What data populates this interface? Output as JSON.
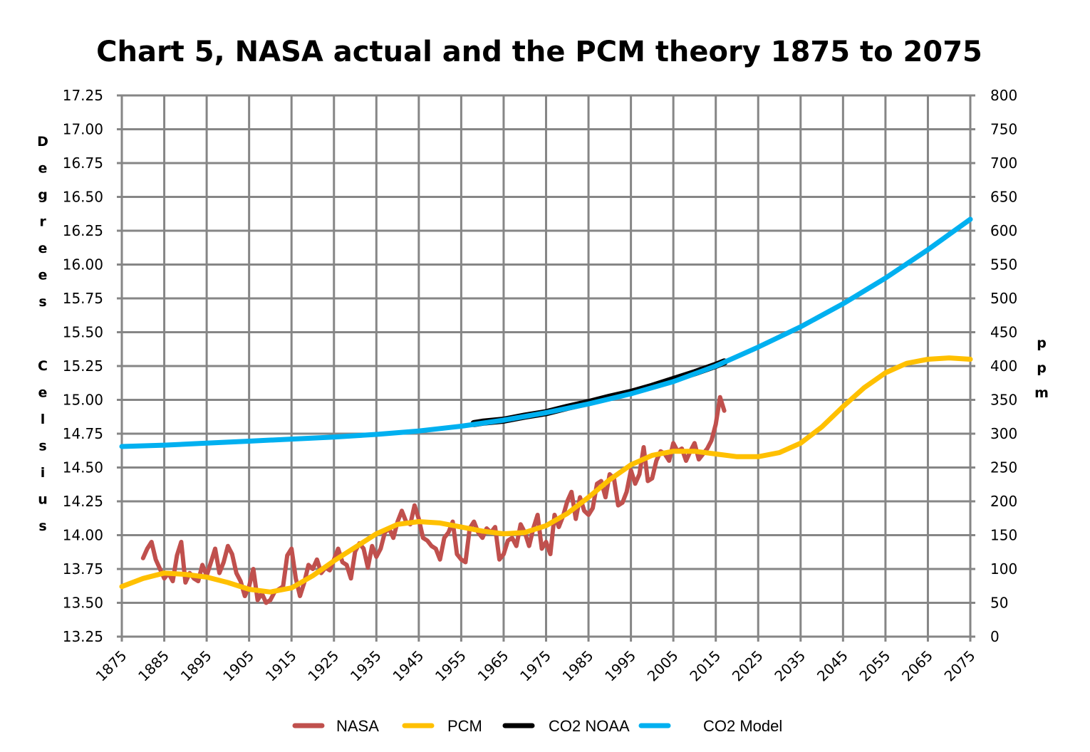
{
  "chart_data": {
    "type": "line",
    "title": "Chart 5, NASA actual and the PCM theory 1875 to 2075",
    "xlabel": "",
    "ylabel": "Degrees Celsius",
    "y2label": "ppm",
    "xlim": [
      1875,
      2075
    ],
    "ylim": [
      13.25,
      17.25
    ],
    "y2lim": [
      0,
      800
    ],
    "grid": true,
    "legend_position": "bottom",
    "x_ticks": [
      "1875",
      "1885",
      "1895",
      "1905",
      "1915",
      "1925",
      "1935",
      "1945",
      "1955",
      "1965",
      "1975",
      "1985",
      "1995",
      "2005",
      "2015",
      "2025",
      "2035",
      "2045",
      "2055",
      "2065",
      "2075"
    ],
    "y_ticks": [
      "17.25",
      "17.00",
      "16.75",
      "16.50",
      "16.25",
      "16.00",
      "15.75",
      "15.50",
      "15.25",
      "15.00",
      "14.75",
      "14.50",
      "14.25",
      "14.00",
      "13.75",
      "13.50",
      "13.25"
    ],
    "y2_ticks": [
      "800",
      "750",
      "700",
      "650",
      "600",
      "550",
      "500",
      "450",
      "400",
      "350",
      "300",
      "250",
      "200",
      "150",
      "100",
      "50",
      "0"
    ],
    "series": [
      {
        "name": "NASA",
        "axis": "left",
        "color": "#c0504d",
        "x": [
          1880,
          1881,
          1882,
          1883,
          1884,
          1885,
          1886,
          1887,
          1888,
          1889,
          1890,
          1891,
          1892,
          1893,
          1894,
          1895,
          1896,
          1897,
          1898,
          1899,
          1900,
          1901,
          1902,
          1903,
          1904,
          1905,
          1906,
          1907,
          1908,
          1909,
          1910,
          1911,
          1912,
          1913,
          1914,
          1915,
          1916,
          1917,
          1918,
          1919,
          1920,
          1921,
          1922,
          1923,
          1924,
          1925,
          1926,
          1927,
          1928,
          1929,
          1930,
          1931,
          1932,
          1933,
          1934,
          1935,
          1936,
          1937,
          1938,
          1939,
          1940,
          1941,
          1942,
          1943,
          1944,
          1945,
          1946,
          1947,
          1948,
          1949,
          1950,
          1951,
          1952,
          1953,
          1954,
          1955,
          1956,
          1957,
          1958,
          1959,
          1960,
          1961,
          1962,
          1963,
          1964,
          1965,
          1966,
          1967,
          1968,
          1969,
          1970,
          1971,
          1972,
          1973,
          1974,
          1975,
          1976,
          1977,
          1978,
          1979,
          1980,
          1981,
          1982,
          1983,
          1984,
          1985,
          1986,
          1987,
          1988,
          1989,
          1990,
          1991,
          1992,
          1993,
          1994,
          1995,
          1996,
          1997,
          1998,
          1999,
          2000,
          2001,
          2002,
          2003,
          2004,
          2005,
          2006,
          2007,
          2008,
          2009,
          2010,
          2011,
          2012,
          2013,
          2014,
          2015,
          2016,
          2017
        ],
        "values": [
          13.83,
          13.9,
          13.95,
          13.82,
          13.75,
          13.68,
          13.72,
          13.66,
          13.85,
          13.95,
          13.65,
          13.72,
          13.68,
          13.66,
          13.78,
          13.7,
          13.8,
          13.9,
          13.72,
          13.8,
          13.92,
          13.86,
          13.72,
          13.66,
          13.55,
          13.62,
          13.75,
          13.52,
          13.57,
          13.5,
          13.52,
          13.58,
          13.6,
          13.62,
          13.85,
          13.9,
          13.68,
          13.55,
          13.65,
          13.78,
          13.75,
          13.82,
          13.72,
          13.76,
          13.74,
          13.82,
          13.9,
          13.8,
          13.78,
          13.68,
          13.88,
          13.94,
          13.9,
          13.76,
          13.92,
          13.84,
          13.9,
          14.02,
          14.05,
          13.98,
          14.1,
          14.18,
          14.1,
          14.08,
          14.22,
          14.12,
          13.98,
          13.96,
          13.92,
          13.9,
          13.82,
          13.98,
          14.02,
          14.1,
          13.86,
          13.82,
          13.8,
          14.05,
          14.1,
          14.02,
          13.98,
          14.05,
          14.02,
          14.06,
          13.82,
          13.86,
          13.96,
          13.98,
          13.92,
          14.08,
          14.02,
          13.92,
          14.05,
          14.15,
          13.9,
          13.95,
          13.86,
          14.15,
          14.06,
          14.14,
          14.25,
          14.32,
          14.12,
          14.28,
          14.18,
          14.15,
          14.2,
          14.38,
          14.4,
          14.28,
          14.45,
          14.42,
          14.22,
          14.24,
          14.32,
          14.48,
          14.38,
          14.45,
          14.65,
          14.4,
          14.42,
          14.55,
          14.62,
          14.6,
          14.55,
          14.68,
          14.62,
          14.64,
          14.55,
          14.62,
          14.68,
          14.56,
          14.6,
          14.64,
          14.7,
          14.82,
          15.02,
          14.92
        ]
      },
      {
        "name": "PCM",
        "axis": "left",
        "color": "#ffc000",
        "x": [
          1875,
          1880,
          1885,
          1890,
          1895,
          1900,
          1905,
          1910,
          1915,
          1920,
          1925,
          1930,
          1935,
          1940,
          1945,
          1950,
          1955,
          1960,
          1965,
          1970,
          1975,
          1980,
          1985,
          1990,
          1995,
          2000,
          2005,
          2010,
          2015,
          2020,
          2025,
          2030,
          2035,
          2040,
          2045,
          2050,
          2055,
          2060,
          2065,
          2070,
          2075
        ],
        "values": [
          13.62,
          13.68,
          13.72,
          13.71,
          13.69,
          13.65,
          13.6,
          13.58,
          13.61,
          13.7,
          13.81,
          13.91,
          14.01,
          14.08,
          14.1,
          14.09,
          14.06,
          14.03,
          14.01,
          14.02,
          14.07,
          14.16,
          14.28,
          14.41,
          14.52,
          14.59,
          14.62,
          14.62,
          14.6,
          14.58,
          14.58,
          14.61,
          14.68,
          14.8,
          14.95,
          15.09,
          15.2,
          15.27,
          15.3,
          15.31,
          15.3
        ]
      },
      {
        "name": "CO2 NOAA",
        "axis": "right",
        "color": "#000000",
        "x": [
          1958,
          1960,
          1965,
          1970,
          1975,
          1980,
          1985,
          1990,
          1995,
          2000,
          2005,
          2010,
          2015,
          2017
        ],
        "values": [
          315,
          317,
          320,
          326,
          331,
          339,
          346,
          354,
          361,
          370,
          380,
          390,
          401,
          406
        ]
      },
      {
        "name": "CO2 Model",
        "axis": "right",
        "color": "#00b0f0",
        "x": [
          1875,
          1885,
          1895,
          1905,
          1915,
          1925,
          1935,
          1945,
          1955,
          1965,
          1975,
          1985,
          1995,
          2005,
          2015,
          2025,
          2035,
          2045,
          2055,
          2065,
          2075
        ],
        "values": [
          281,
          283,
          286,
          289,
          292,
          295,
          299,
          304,
          311,
          320,
          331,
          344,
          359,
          377,
          400,
          428,
          458,
          492,
          530,
          572,
          617
        ]
      }
    ]
  }
}
